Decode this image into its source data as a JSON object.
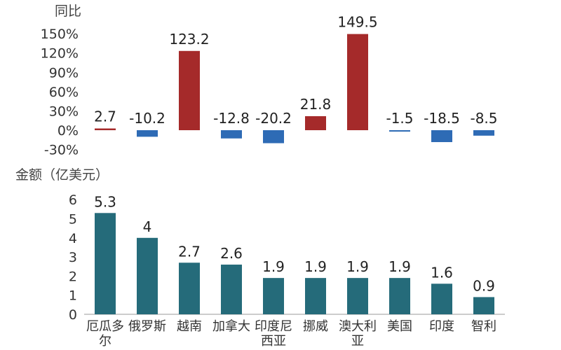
{
  "chart_data": [
    {
      "type": "bar",
      "ylabel": "同比",
      "yticks": [
        "150%",
        "120%",
        "90%",
        "60%",
        "30%",
        "0%",
        "-30%"
      ],
      "ylim": [
        -30,
        150
      ],
      "categories": [
        "厄瓜多尔",
        "俄罗斯",
        "越南",
        "加拿大",
        "印度尼西亚",
        "挪威",
        "澳大利亚",
        "美国",
        "印度",
        "智利"
      ],
      "values": [
        2.7,
        -10.2,
        123.2,
        -12.8,
        -20.2,
        21.8,
        149.5,
        -1.5,
        -18.5,
        -8.5
      ],
      "data_labels": [
        "2.7",
        "-10.2",
        "123.2",
        "-12.8",
        "-20.2",
        "21.8",
        "149.5",
        "-1.5",
        "-18.5",
        "-8.5"
      ],
      "colors": {
        "positive": "#a52a2a",
        "negative": "#2e6bb5"
      }
    },
    {
      "type": "bar",
      "ylabel": "金额（亿美元）",
      "yticks": [
        "6",
        "5",
        "4",
        "3",
        "2",
        "1",
        "0"
      ],
      "ylim": [
        0,
        6
      ],
      "categories": [
        "厄瓜多尔",
        "俄罗斯",
        "越南",
        "加拿大",
        "印度尼西亚",
        "挪威",
        "澳大利亚",
        "美国",
        "印度",
        "智利"
      ],
      "category_display_lines": [
        [
          "厄瓜多",
          "尔"
        ],
        [
          "俄罗斯"
        ],
        [
          "越南"
        ],
        [
          "加拿大"
        ],
        [
          "印度尼",
          "西亚"
        ],
        [
          "挪威"
        ],
        [
          "澳大利",
          "亚"
        ],
        [
          "美国"
        ],
        [
          "印度"
        ],
        [
          "智利"
        ]
      ],
      "values": [
        5.3,
        4,
        2.7,
        2.6,
        1.9,
        1.9,
        1.9,
        1.9,
        1.6,
        0.9
      ],
      "data_labels": [
        "5.3",
        "4",
        "2.7",
        "2.6",
        "1.9",
        "1.9",
        "1.9",
        "1.9",
        "1.6",
        "0.9"
      ],
      "colors": {
        "bar": "#256b7a"
      }
    }
  ]
}
